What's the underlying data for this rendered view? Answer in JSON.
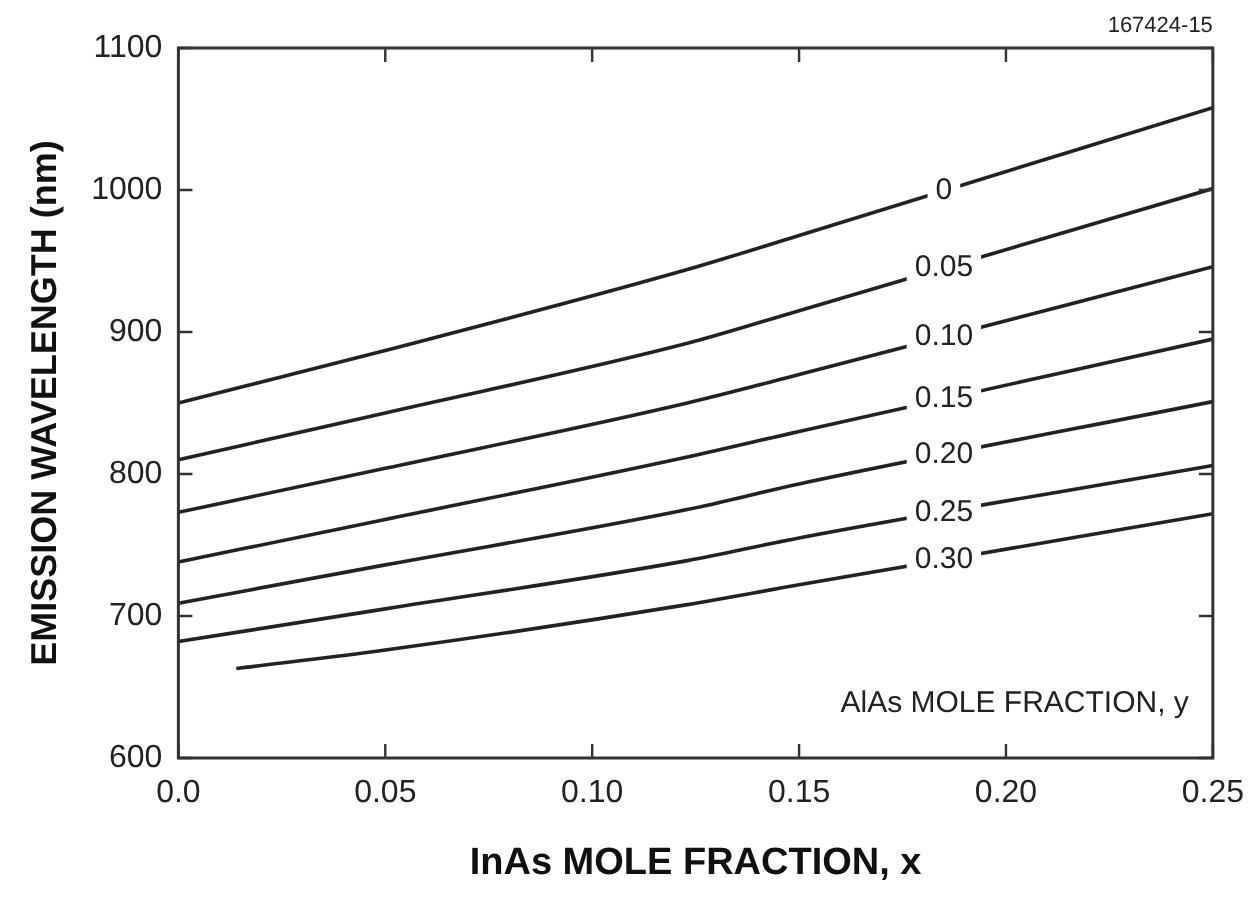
{
  "chart_data": {
    "type": "line",
    "xlabel": "InAs MOLE FRACTION, x",
    "ylabel": "EMISSION WAVELENGTH (nm)",
    "legend_title": "AlAs MOLE FRACTION, y",
    "annotations": [
      "167424-15"
    ],
    "xlim": [
      0,
      0.25
    ],
    "xticks": [
      {
        "value": 0,
        "label": "0.0"
      },
      {
        "value": 0.05,
        "label": "0.05"
      },
      {
        "value": 0.1,
        "label": "0.10"
      },
      {
        "value": 0.15,
        "label": "0.15"
      },
      {
        "value": 0.2,
        "label": "0.20"
      },
      {
        "value": 0.25,
        "label": "0.25"
      }
    ],
    "ylim": [
      600,
      1100
    ],
    "yticks": [
      600,
      700,
      800,
      900,
      1000,
      1100
    ],
    "grid": false,
    "legend": false,
    "marker": "none",
    "line_style": "solid",
    "color": "#222222",
    "x": [
      0,
      0.05,
      0.123,
      0.15,
      0.25
    ],
    "series": [
      {
        "name": "0",
        "values": [
          850,
          887,
          944,
          968,
          1058
        ]
      },
      {
        "name": "0.05",
        "values": [
          810,
          843,
          892,
          915,
          1001
        ]
      },
      {
        "name": "0.10",
        "values": [
          773,
          804,
          850,
          870,
          946
        ]
      },
      {
        "name": "0.15",
        "values": [
          738,
          768,
          812,
          830,
          895
        ]
      },
      {
        "name": "0.20",
        "values": [
          709,
          736,
          775,
          793,
          851
        ]
      },
      {
        "name": "0.25",
        "values": [
          682,
          705,
          739,
          755,
          806
        ]
      },
      {
        "name": "0.30",
        "x": [
          0.014,
          0.05,
          0.123,
          0.15,
          0.25
        ],
        "values": [
          663,
          676,
          708,
          722,
          772
        ]
      }
    ]
  }
}
